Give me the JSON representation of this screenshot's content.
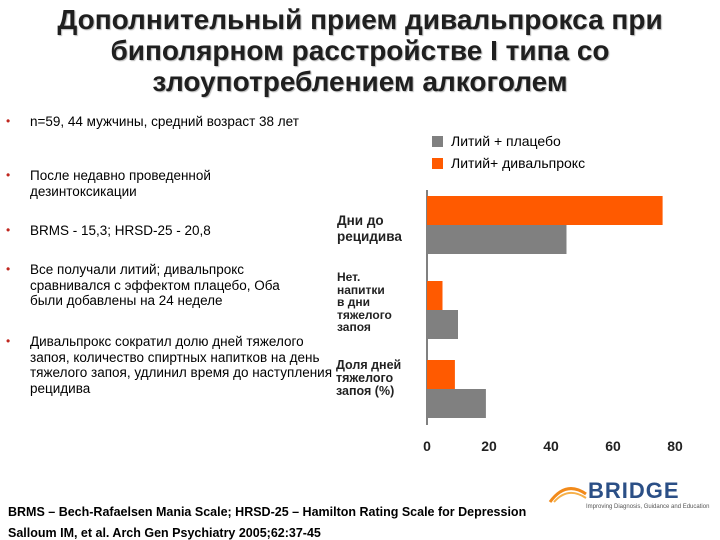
{
  "title": {
    "line1": "Дополнительный прием дивальпрокса при",
    "line2": "биполярном расстройстве I типа со",
    "line3": "злоупотреблением  алкоголем"
  },
  "bullets": [
    {
      "text": "n=59, 44 мужчины, средний возраст 38 лет"
    },
    {
      "text": "После недавно проведенной дезинтоксикации"
    },
    {
      "text": "BRMS - 15,3; HRSD-25 - 20,8"
    },
    {
      "text": "Все получали литий; дивальпрокс сравнивался с эффектом плацебо, Оба были добавлены на 24 неделе"
    },
    {
      "text": "Дивальпрокс сократил долю дней тяжелого запоя, количество спиртных напитков на день тяжелого запоя, удлинил время до наступления рецидива"
    }
  ],
  "bullet_symbol": "•",
  "chart_data": {
    "type": "bar",
    "orientation": "horizontal",
    "categories": [
      "Дни до рецидива",
      "Нет. напитки в дни тяжелого запоя",
      "Доля дней тяжелого запоя (%)"
    ],
    "series": [
      {
        "name": "Литий+ дивальпрокс",
        "color": "#ff5a00",
        "values": [
          76,
          5,
          9
        ]
      },
      {
        "name": "Литий + плацебо",
        "color": "#808080",
        "values": [
          45,
          10,
          19
        ]
      }
    ],
    "legend": [
      "Литий + плацебо",
      "Литий+ дивальпрокс"
    ],
    "xlim": [
      0,
      80
    ],
    "xticks": [
      "0",
      "20",
      "40",
      "60",
      "80"
    ],
    "grid": false,
    "legend_position": "top-right"
  },
  "chart_labels": {
    "cat1_line1": "Дни до",
    "cat1_line2": "рецидива",
    "cat2_line1": "Нет.",
    "cat2_line2": "напитки",
    "cat2_line3": "в дни",
    "cat2_line4": "тяжелого",
    "cat2_line5": "запоя",
    "cat3_line1": "Доля дней",
    "cat3_line2": "тяжелого",
    "cat3_line3": "запоя (%)"
  },
  "footer": {
    "scales": "BRMS – Bech-Rafaelsen Mania Scale; HRSD-25 – Hamilton Rating Scale for Depression",
    "citation": "Salloum IM, et al. Arch Gen Psychiatry 2005;62:37-45"
  },
  "logo": {
    "word": "BRIDGE",
    "tagline": "Improving Diagnosis, Guidance and Education"
  }
}
